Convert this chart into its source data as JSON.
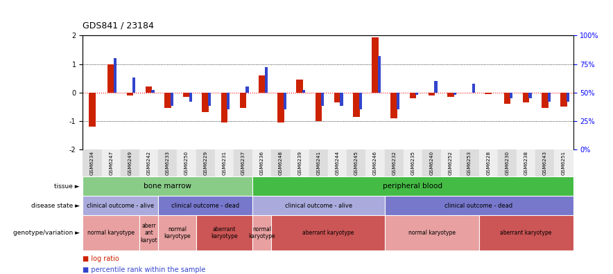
{
  "title": "GDS841 / 23184",
  "samples": [
    "GSM6234",
    "GSM6247",
    "GSM6249",
    "GSM6242",
    "GSM6233",
    "GSM6250",
    "GSM6229",
    "GSM6231",
    "GSM6237",
    "GSM6236",
    "GSM6248",
    "GSM6239",
    "GSM6241",
    "GSM6244",
    "GSM6245",
    "GSM6246",
    "GSM6232",
    "GSM6235",
    "GSM6240",
    "GSM6252",
    "GSM6253",
    "GSM6228",
    "GSM6230",
    "GSM6238",
    "GSM6243",
    "GSM6251"
  ],
  "log_ratio": [
    -1.2,
    1.0,
    -0.1,
    0.2,
    -0.55,
    -0.15,
    -0.7,
    -1.05,
    -0.55,
    0.6,
    -1.05,
    0.45,
    -1.0,
    -0.35,
    -0.85,
    1.95,
    -0.9,
    -0.2,
    -0.1,
    -0.15,
    0.0,
    -0.05,
    -0.4,
    -0.35,
    -0.55,
    -0.5
  ],
  "percentile": [
    50,
    80,
    63,
    52,
    38,
    42,
    38,
    35,
    55,
    72,
    35,
    52,
    38,
    38,
    35,
    82,
    35,
    48,
    60,
    48,
    58,
    50,
    45,
    45,
    42,
    42
  ],
  "ylim": [
    -2,
    2
  ],
  "y2lim": [
    0,
    100
  ],
  "yticks": [
    -2,
    -1,
    0,
    1,
    2
  ],
  "y2ticks": [
    0,
    25,
    50,
    75,
    100
  ],
  "y2ticklabels": [
    "0%",
    "25%",
    "50%",
    "75%",
    "100%"
  ],
  "bar_color": "#cc2200",
  "blue_color": "#3344cc",
  "tissue_labels": [
    {
      "label": "bone marrow",
      "start": 0,
      "end": 9,
      "color": "#88cc88"
    },
    {
      "label": "peripheral blood",
      "start": 9,
      "end": 26,
      "color": "#44bb44"
    }
  ],
  "disease_state": [
    {
      "label": "clinical outcome - alive",
      "start": 0,
      "end": 4,
      "color": "#aaaadd"
    },
    {
      "label": "clinical outcome - dead",
      "start": 4,
      "end": 9,
      "color": "#7777cc"
    },
    {
      "label": "clinical outcome - alive",
      "start": 9,
      "end": 16,
      "color": "#aaaadd"
    },
    {
      "label": "clinical outcome - dead",
      "start": 16,
      "end": 26,
      "color": "#7777cc"
    }
  ],
  "genotype_variation": [
    {
      "label": "normal karyotype",
      "start": 0,
      "end": 3,
      "color": "#e8a0a0"
    },
    {
      "label": "aberr\nant\nkaryot",
      "start": 3,
      "end": 4,
      "color": "#e8a0a0"
    },
    {
      "label": "normal\nkaryotype",
      "start": 4,
      "end": 6,
      "color": "#e8a0a0"
    },
    {
      "label": "aberrant\nkaryotype",
      "start": 6,
      "end": 9,
      "color": "#cc5555"
    },
    {
      "label": "normal\nkaryotype",
      "start": 9,
      "end": 10,
      "color": "#e8a0a0"
    },
    {
      "label": "aberrant karyotype",
      "start": 10,
      "end": 16,
      "color": "#cc5555"
    },
    {
      "label": "normal karyotype",
      "start": 16,
      "end": 21,
      "color": "#e8a0a0"
    },
    {
      "label": "aberrant karyotype",
      "start": 21,
      "end": 26,
      "color": "#cc5555"
    }
  ],
  "row_labels": [
    "tissue",
    "disease state",
    "genotype/variation"
  ],
  "legend_items": [
    {
      "label": "log ratio",
      "color": "#cc2200"
    },
    {
      "label": "percentile rank within the sample",
      "color": "#3344cc"
    }
  ],
  "bg_colors": [
    "#dddddd",
    "#eeeeee"
  ]
}
